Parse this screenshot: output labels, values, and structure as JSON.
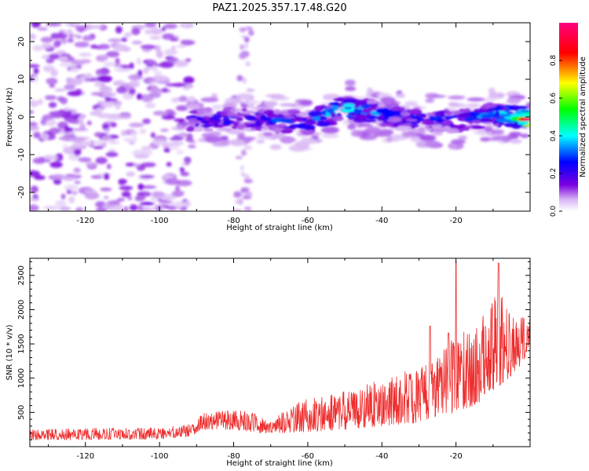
{
  "chart_data": [
    {
      "type": "heatmap",
      "title": "PAZ1.2025.357.17.48.G20",
      "xlabel": "Height of straight line (km)",
      "ylabel": "Frequency (Hz)",
      "xlim": [
        -135,
        0
      ],
      "ylim": [
        -25,
        25
      ],
      "xticks": [
        -120,
        -100,
        -80,
        -60,
        -40,
        -20
      ],
      "yticks": [
        -20,
        -10,
        0,
        10,
        20
      ],
      "colorbar": {
        "label": "Normalized spectral amplitude",
        "range": [
          0.0,
          1.0
        ],
        "ticks": [
          0.0,
          0.2,
          0.4,
          0.6,
          0.8
        ],
        "colormap": [
          "#ffffff",
          "#d9b8f4",
          "#7b00e0",
          "#0000ff",
          "#00ffff",
          "#00ff00",
          "#ffff00",
          "#ff0000",
          "#ff007f"
        ]
      },
      "features": {
        "noise_region_km": [
          -135,
          -92
        ],
        "signal_start_km": -92,
        "signal_band_center_hz": [
          [
            -92,
            -1.0
          ],
          [
            -80,
            -0.5
          ],
          [
            -70,
            -1.0
          ],
          [
            -60,
            -1.5
          ],
          [
            -50,
            2.5
          ],
          [
            -40,
            1.0
          ],
          [
            -30,
            -1.0
          ],
          [
            -20,
            -1.0
          ],
          [
            -10,
            0.5
          ],
          [
            0,
            -0.5
          ]
        ],
        "signal_peak_amplitude": [
          [
            -92,
            0.25
          ],
          [
            -80,
            0.3
          ],
          [
            -70,
            0.3
          ],
          [
            -60,
            0.3
          ],
          [
            -50,
            0.5
          ],
          [
            -40,
            0.35
          ],
          [
            -30,
            0.3
          ],
          [
            -20,
            0.3
          ],
          [
            -10,
            0.4
          ],
          [
            -5,
            0.6
          ],
          [
            -2,
            0.95
          ]
        ]
      }
    },
    {
      "type": "line",
      "xlabel": "Height of straight line (km)",
      "ylabel": "SNR (10 * v/v)",
      "xlim": [
        -135,
        0
      ],
      "ylim": [
        0,
        2750
      ],
      "xticks": [
        -120,
        -100,
        -80,
        -60,
        -40,
        -20
      ],
      "yticks": [
        500,
        1000,
        1500,
        2000,
        2500
      ],
      "color": "#ee2c2c",
      "envelope": {
        "x": [
          -135,
          -120,
          -100,
          -92,
          -88,
          -80,
          -75,
          -70,
          -65,
          -60,
          -50,
          -40,
          -30,
          -25,
          -20,
          -15,
          -10,
          -8,
          -5,
          0
        ],
        "low": [
          100,
          100,
          110,
          150,
          250,
          250,
          200,
          200,
          200,
          220,
          250,
          300,
          350,
          450,
          500,
          600,
          800,
          900,
          1000,
          1400
        ],
        "high": [
          250,
          270,
          280,
          340,
          500,
          540,
          500,
          360,
          600,
          700,
          820,
          980,
          1180,
          1350,
          1650,
          1700,
          2200,
          2300,
          1900,
          1900
        ]
      },
      "peaks": [
        [
          -20,
          2700
        ],
        [
          -8.5,
          2680
        ],
        [
          -27,
          1760
        ],
        [
          -22,
          1660
        ]
      ]
    }
  ]
}
